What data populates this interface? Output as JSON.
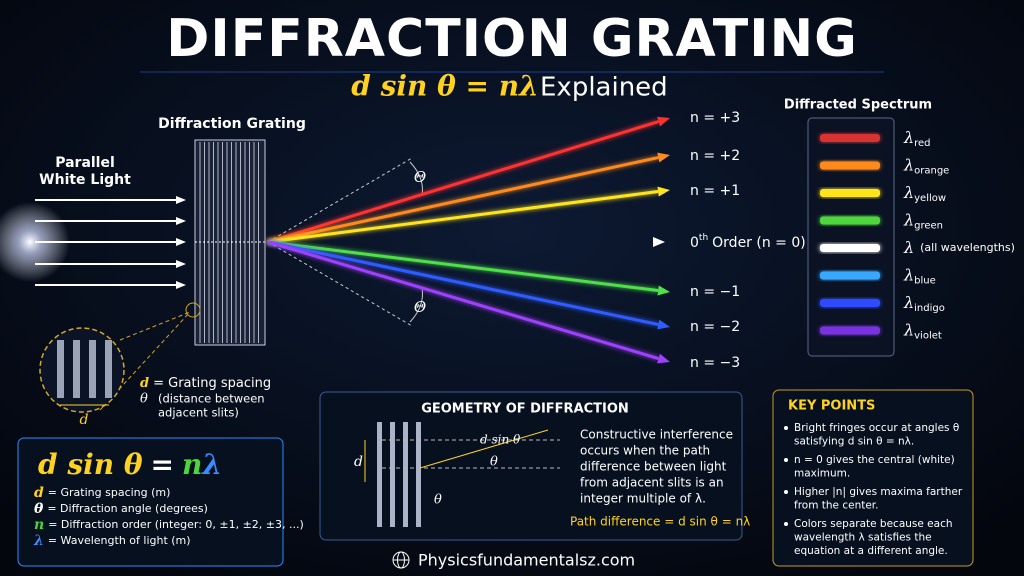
{
  "header": {
    "title": "DIFFRACTION GRATING",
    "equation": "d sin θ = nλ",
    "subtitle": "Explained"
  },
  "source": {
    "label_lines": [
      "Parallel",
      "White Light"
    ]
  },
  "grating": {
    "label": "Diffraction Grating",
    "angle_symbols": [
      "Θ",
      "Θ"
    ]
  },
  "orders": [
    "n = +3",
    "n = +2",
    "n = +1",
    "n = −1",
    "n = −2",
    "n = −3"
  ],
  "zero_order": {
    "number": "0",
    "superscript": "th",
    "text": "Order (n = 0)"
  },
  "spectrum": {
    "title": "Diffracted Spectrum",
    "items": [
      {
        "symbol": "λ",
        "subscript": "red"
      },
      {
        "symbol": "λ",
        "subscript": "orange"
      },
      {
        "symbol": "λ",
        "subscript": "yellow"
      },
      {
        "symbol": "λ",
        "subscript": "green"
      },
      {
        "symbol": "λ",
        "note": "(all wavelengths)"
      },
      {
        "symbol": "λ",
        "subscript": "blue"
      },
      {
        "symbol": "λ",
        "subscript": "indigo"
      },
      {
        "symbol": "λ",
        "subscript": "violet"
      }
    ]
  },
  "inset": {
    "spacing_symbol": "d",
    "d": "d",
    "d_text": "= Grating spacing",
    "theta": "θ",
    "note_lines": [
      "(distance between",
      "adjacent slits)"
    ]
  },
  "formula": {
    "lhs": "d sin θ",
    "eq": "=",
    "n": "n",
    "lambda": "λ",
    "definitions": [
      {
        "symbol": "d",
        "text": "= Grating spacing (m)"
      },
      {
        "symbol": "θ",
        "text": "= Diffraction angle (degrees)"
      },
      {
        "symbol": "n",
        "text": "= Diffraction order (integer: 0, ±1, ±2, ±3, ...)"
      },
      {
        "symbol": "λ",
        "text": "= Wavelength of light (m)"
      }
    ]
  },
  "geometry": {
    "title": "GEOMETRY OF DIFFRACTION",
    "d_label": "d",
    "path_label": "d sin θ",
    "angle_labels": [
      "θ",
      "θ"
    ],
    "text_lines": [
      "Constructive interference",
      "occurs when the path",
      "difference between light",
      "from adjacent slits is an",
      "integer multiple of λ."
    ],
    "path_difference": "Path difference = d sin θ = nλ"
  },
  "key_points": {
    "title": "KEY POINTS",
    "bullets": [
      [
        "Bright fringes occur at angles θ",
        "satisfying d sin θ = nλ."
      ],
      [
        "n = 0 gives the central (white)",
        "maximum."
      ],
      [
        "Higher |n| gives maxima farther",
        "from the center."
      ],
      [
        "Colors separate because each",
        "wavelength λ satisfies the",
        "equation at a different angle."
      ]
    ]
  },
  "footer": {
    "site": "Physicsfundamentalsz.com"
  }
}
